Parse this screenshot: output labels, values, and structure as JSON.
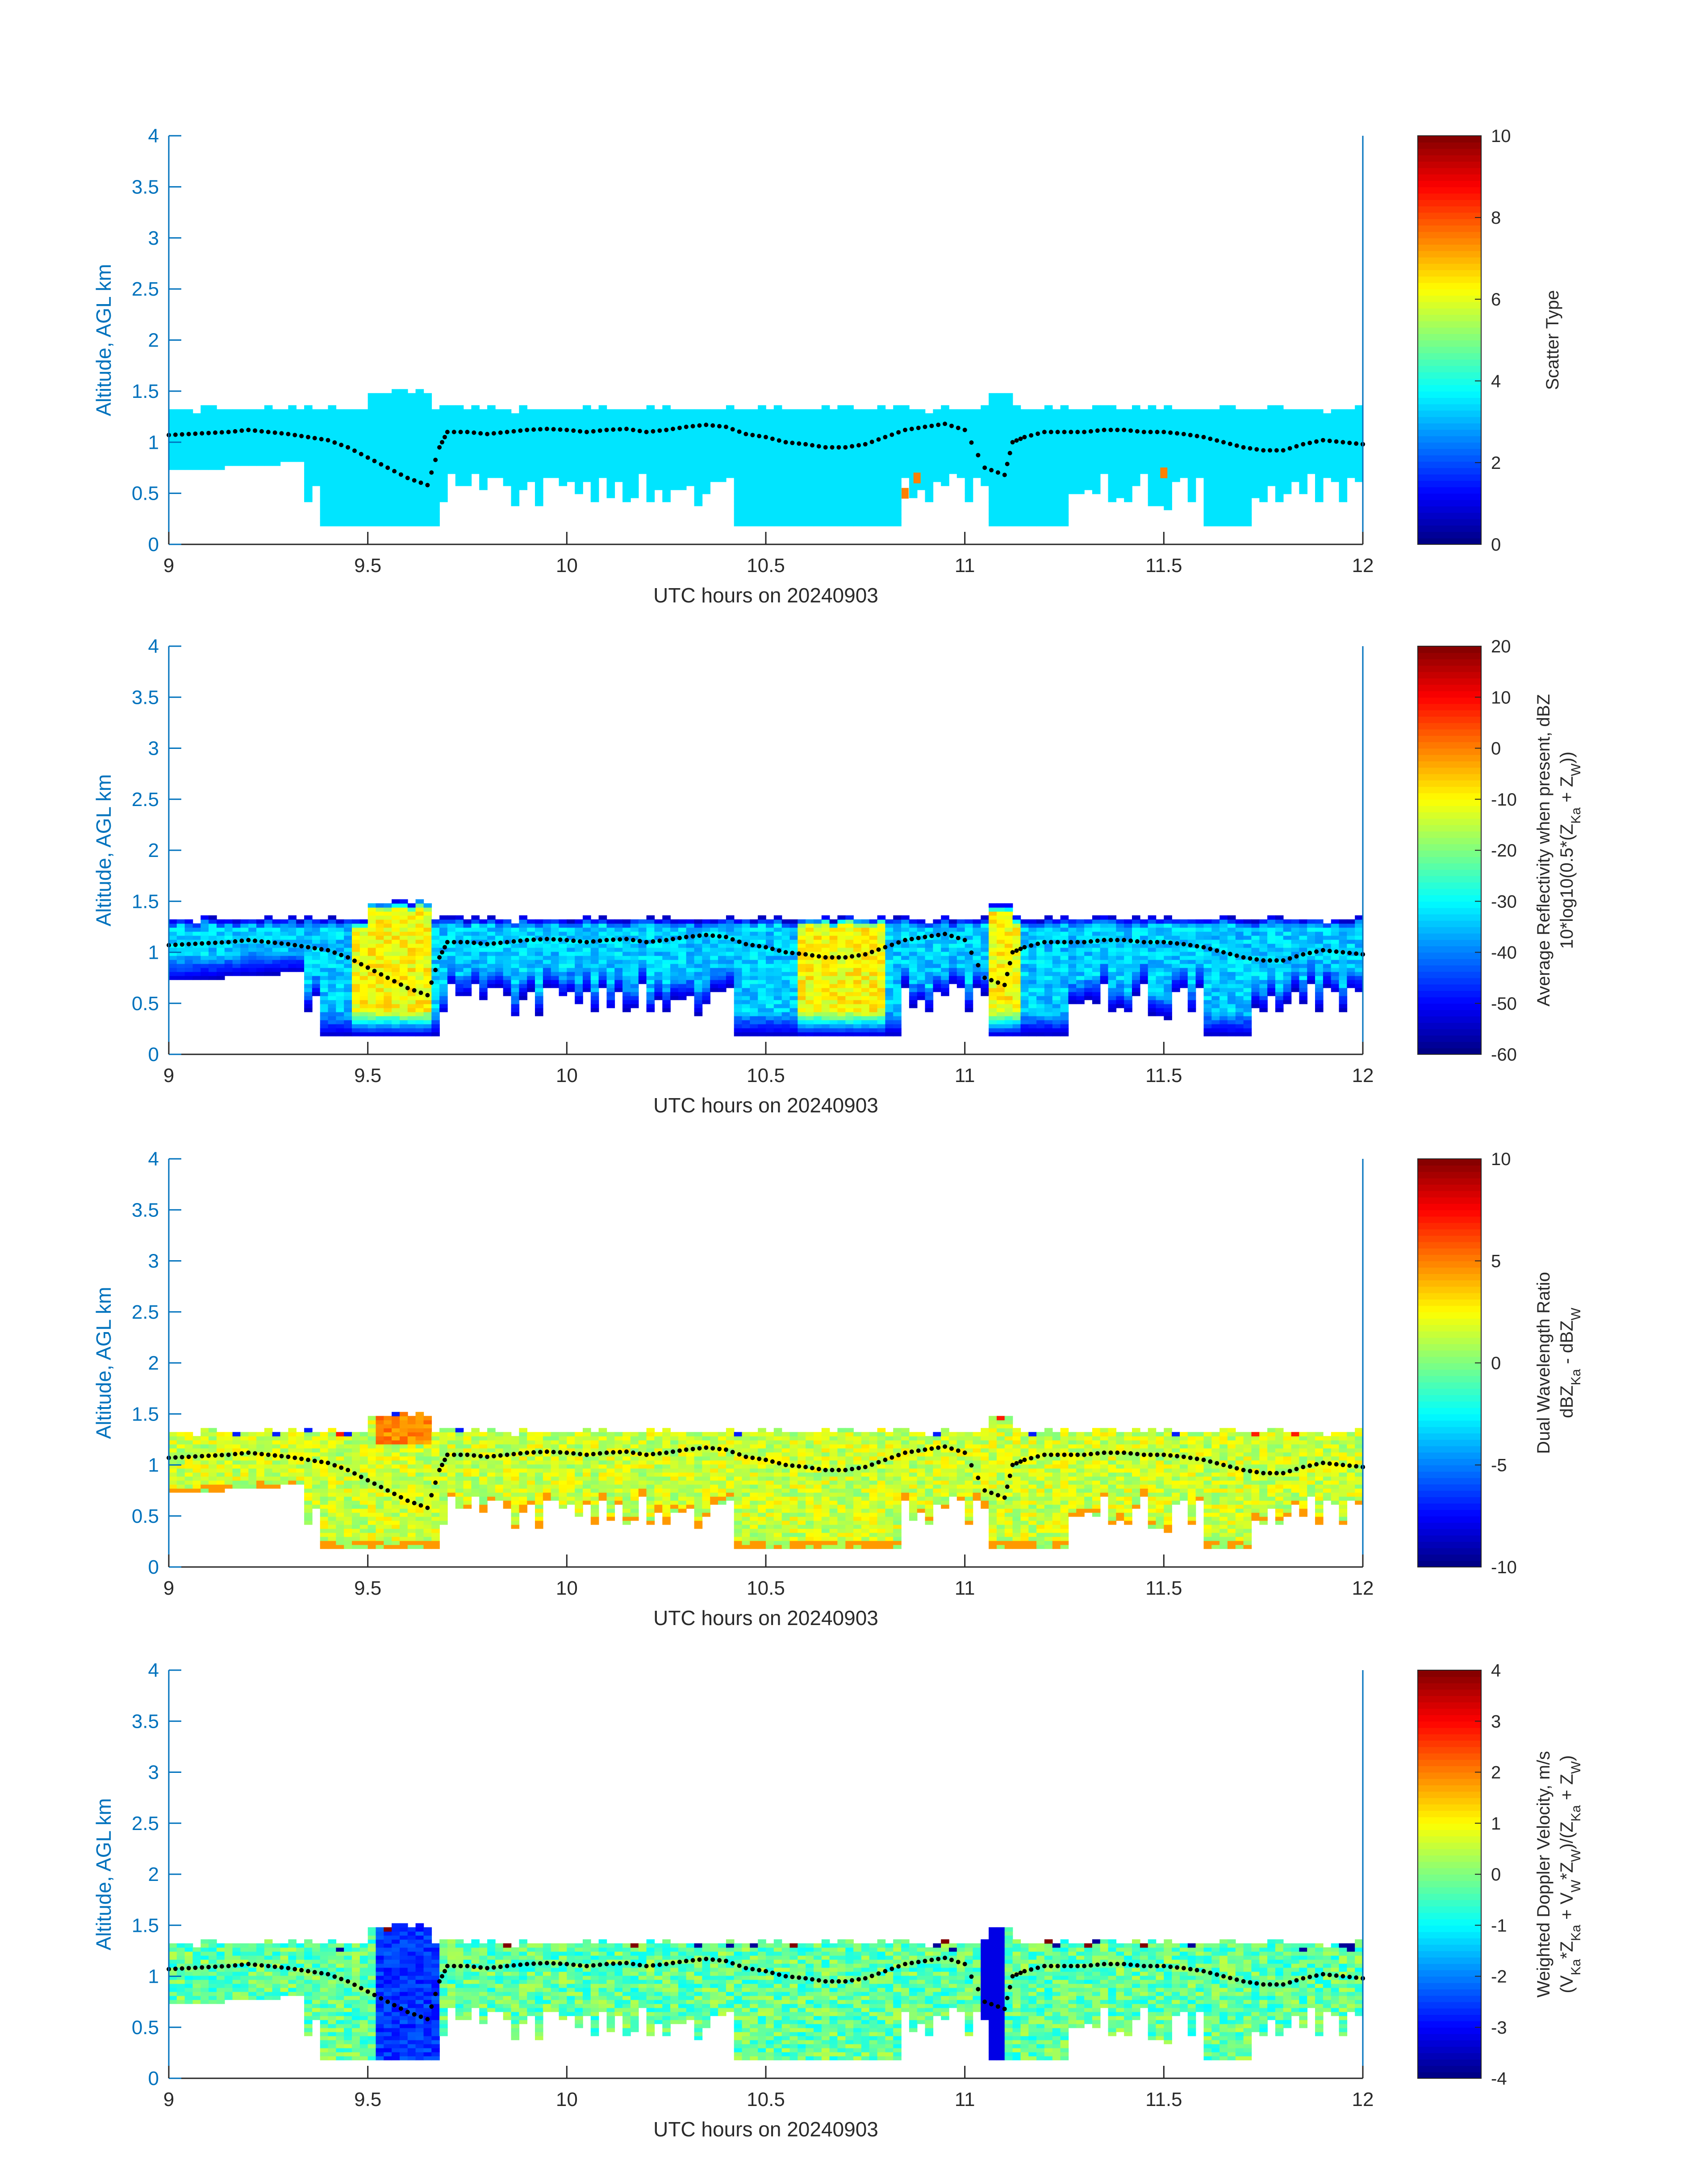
{
  "figure": {
    "date": "20240903",
    "x_label": "UTC hours on 20240903",
    "y_label": "Altitude, AGL km"
  },
  "chart_data": [
    {
      "type": "heatmap",
      "panel": 1,
      "x_label": "UTC hours on 20240903",
      "y_label": "Altitude, AGL km",
      "xlim": [
        9,
        12
      ],
      "ylim": [
        0,
        4
      ],
      "x_ticks": [
        "9",
        "9.5",
        "10",
        "10.5",
        "11",
        "11.5",
        "12"
      ],
      "y_ticks": [
        "0",
        "0.5",
        "1",
        "1.5",
        "2",
        "2.5",
        "3",
        "3.5",
        "4"
      ],
      "colorbar": {
        "min": 0,
        "max": 10,
        "ticks": [
          "0",
          "2",
          "4",
          "6",
          "8",
          "10"
        ],
        "label_lines": [
          "Scatter Type"
        ]
      },
      "value_range": [
        3.5,
        3.5
      ],
      "accent_cells": [
        {
          "x": 10.85,
          "y": 0.5,
          "value": 7.5
        },
        {
          "x": 10.88,
          "y": 0.65,
          "value": 7.5
        },
        {
          "x": 11.5,
          "y": 0.7,
          "value": 7.5
        }
      ]
    },
    {
      "type": "heatmap",
      "panel": 2,
      "x_label": "UTC hours on 20240903",
      "y_label": "Altitude, AGL km",
      "xlim": [
        9,
        12
      ],
      "ylim": [
        0,
        4
      ],
      "x_ticks": [
        "9",
        "9.5",
        "10",
        "10.5",
        "11",
        "11.5",
        "12"
      ],
      "y_ticks": [
        "0",
        "0.5",
        "1",
        "1.5",
        "2",
        "2.5",
        "3",
        "3.5",
        "4"
      ],
      "colorbar": {
        "min": -60,
        "max": 20,
        "ticks": [
          "-60",
          "-50",
          "-40",
          "-30",
          "-20",
          "-10",
          "0",
          "10",
          "20"
        ],
        "label_lines": [
          "Average Reflectivity when present, dBZ",
          "10*log10(0.5*(Z_Ka + Z_W))"
        ]
      },
      "value_range": [
        -55,
        -5
      ]
    },
    {
      "type": "heatmap",
      "panel": 3,
      "x_label": "UTC hours on 20240903",
      "y_label": "Altitude, AGL km",
      "xlim": [
        9,
        12
      ],
      "ylim": [
        0,
        4
      ],
      "x_ticks": [
        "9",
        "9.5",
        "10",
        "10.5",
        "11",
        "11.5",
        "12"
      ],
      "y_ticks": [
        "0",
        "0.5",
        "1",
        "1.5",
        "2",
        "2.5",
        "3",
        "3.5",
        "4"
      ],
      "colorbar": {
        "min": -10,
        "max": 10,
        "ticks": [
          "-10",
          "-5",
          "0",
          "5",
          "10"
        ],
        "label_lines": [
          "Dual Wavelength Ratio",
          "dBZ_Ka - dBZ_W"
        ]
      },
      "value_range": [
        0,
        3
      ]
    },
    {
      "type": "heatmap",
      "panel": 4,
      "x_label": "UTC hours on 20240903",
      "y_label": "Altitude, AGL km",
      "xlim": [
        9,
        12
      ],
      "ylim": [
        0,
        4
      ],
      "x_ticks": [
        "9",
        "9.5",
        "10",
        "10.5",
        "11",
        "11.5",
        "12"
      ],
      "y_ticks": [
        "0",
        "0.5",
        "1",
        "1.5",
        "2",
        "2.5",
        "3",
        "3.5",
        "4"
      ],
      "colorbar": {
        "min": -4,
        "max": 4,
        "ticks": [
          "-4",
          "-3",
          "-2",
          "-1",
          "0",
          "1",
          "2",
          "3",
          "4"
        ],
        "label_lines": [
          "Weighted Doppler Velocity, m/s",
          "(V_Ka*Z_Ka + V_W*Z_W)/(Z_Ka + Z_W)"
        ]
      },
      "value_range": [
        -2,
        0.5
      ]
    }
  ],
  "cloud_base_profile": {
    "description_marker": "black dots",
    "x": [
      9.0,
      9.05,
      9.1,
      9.15,
      9.2,
      9.25,
      9.3,
      9.35,
      9.4,
      9.45,
      9.5,
      9.55,
      9.6,
      9.65,
      9.68,
      9.7,
      9.75,
      9.8,
      9.85,
      9.9,
      9.95,
      10.0,
      10.05,
      10.1,
      10.15,
      10.2,
      10.25,
      10.3,
      10.35,
      10.4,
      10.45,
      10.5,
      10.55,
      10.6,
      10.65,
      10.7,
      10.75,
      10.8,
      10.85,
      10.9,
      10.95,
      11.0,
      11.05,
      11.1,
      11.12,
      11.15,
      11.2,
      11.25,
      11.3,
      11.35,
      11.4,
      11.45,
      11.5,
      11.55,
      11.6,
      11.65,
      11.7,
      11.75,
      11.8,
      11.85,
      11.9,
      11.95,
      12.0
    ],
    "y": [
      1.07,
      1.08,
      1.09,
      1.1,
      1.12,
      1.1,
      1.08,
      1.05,
      1.02,
      0.95,
      0.85,
      0.75,
      0.65,
      0.58,
      0.95,
      1.1,
      1.1,
      1.08,
      1.1,
      1.12,
      1.13,
      1.12,
      1.1,
      1.12,
      1.13,
      1.1,
      1.12,
      1.15,
      1.17,
      1.15,
      1.08,
      1.05,
      1.0,
      0.98,
      0.95,
      0.95,
      0.98,
      1.05,
      1.12,
      1.15,
      1.18,
      1.12,
      0.75,
      0.68,
      1.0,
      1.05,
      1.1,
      1.1,
      1.1,
      1.12,
      1.12,
      1.1,
      1.1,
      1.08,
      1.05,
      1.0,
      0.95,
      0.92,
      0.92,
      0.98,
      1.02,
      1.0,
      0.98
    ]
  }
}
